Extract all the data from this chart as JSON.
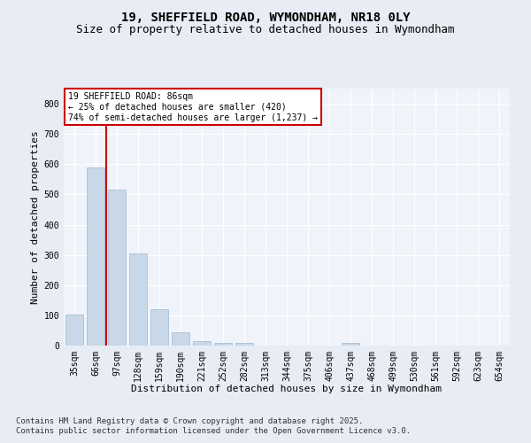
{
  "title1": "19, SHEFFIELD ROAD, WYMONDHAM, NR18 0LY",
  "title2": "Size of property relative to detached houses in Wymondham",
  "xlabel": "Distribution of detached houses by size in Wymondham",
  "ylabel": "Number of detached properties",
  "categories": [
    "35sqm",
    "66sqm",
    "97sqm",
    "128sqm",
    "159sqm",
    "190sqm",
    "221sqm",
    "252sqm",
    "282sqm",
    "313sqm",
    "344sqm",
    "375sqm",
    "406sqm",
    "437sqm",
    "468sqm",
    "499sqm",
    "530sqm",
    "561sqm",
    "592sqm",
    "623sqm",
    "654sqm"
  ],
  "values": [
    102,
    590,
    515,
    305,
    120,
    45,
    15,
    8,
    8,
    0,
    0,
    0,
    0,
    10,
    0,
    0,
    0,
    0,
    0,
    0,
    0
  ],
  "bar_color": "#c8d8e8",
  "bar_edgecolor": "#a0b8d0",
  "vline_x": 1.5,
  "vline_color": "#cc0000",
  "annotation_text": "19 SHEFFIELD ROAD: 86sqm\n← 25% of detached houses are smaller (420)\n74% of semi-detached houses are larger (1,237) →",
  "annotation_box_edgecolor": "#cc0000",
  "ylim": [
    0,
    850
  ],
  "yticks": [
    0,
    100,
    200,
    300,
    400,
    500,
    600,
    700,
    800
  ],
  "footer1": "Contains HM Land Registry data © Crown copyright and database right 2025.",
  "footer2": "Contains public sector information licensed under the Open Government Licence v3.0.",
  "bg_color": "#e8ecf4",
  "plot_bg_color": "#f0f4fa",
  "grid_color": "#ffffff",
  "title1_fontsize": 10,
  "title2_fontsize": 9,
  "xlabel_fontsize": 8,
  "ylabel_fontsize": 8,
  "annot_fontsize": 7,
  "tick_fontsize": 7,
  "footer_fontsize": 6.5
}
